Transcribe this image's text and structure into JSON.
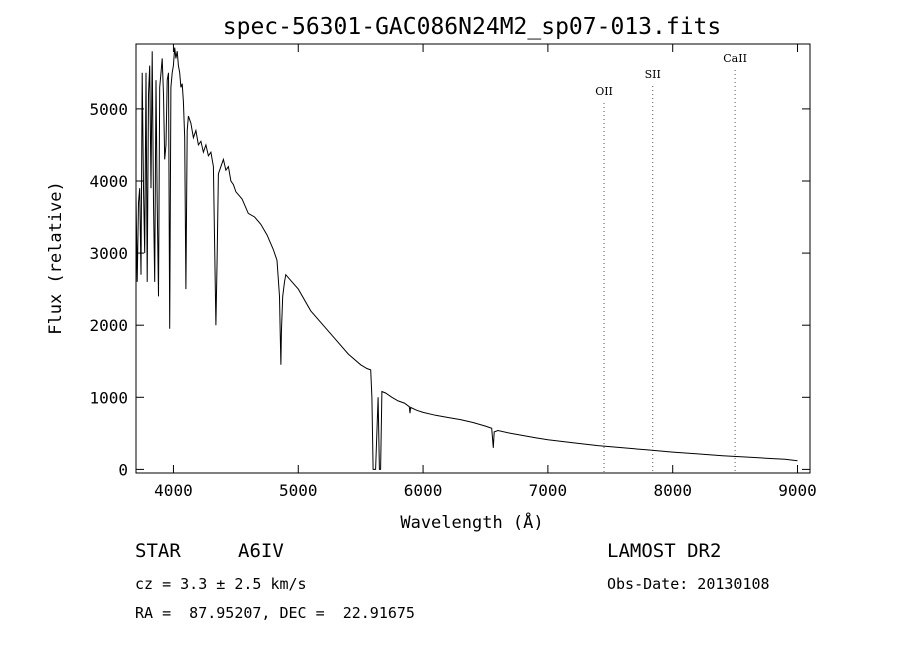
{
  "chart_data": {
    "type": "line",
    "title": "spec-56301-GAC086N24M2_sp07-013.fits",
    "xlabel": "Wavelength (Å)",
    "ylabel": "Flux (relative)",
    "xlim": [
      3700,
      9100
    ],
    "ylim": [
      -50,
      5900
    ],
    "xticks": [
      4000,
      5000,
      6000,
      7000,
      8000,
      9000
    ],
    "yticks": [
      0,
      1000,
      2000,
      3000,
      4000,
      5000
    ],
    "grid": false,
    "series": [
      {
        "x": [
          3700,
          3710,
          3720,
          3730,
          3740,
          3750,
          3760,
          3770,
          3780,
          3790,
          3800,
          3810,
          3820,
          3830,
          3840,
          3850,
          3860,
          3870,
          3880,
          3890,
          3900,
          3910,
          3920,
          3930,
          3940,
          3950,
          3960,
          3970,
          3980,
          3990,
          4000,
          4010,
          4020,
          4030,
          4040,
          4050,
          4060,
          4070,
          4080,
          4090,
          4100,
          4110,
          4120,
          4140,
          4160,
          4180,
          4200,
          4220,
          4240,
          4260,
          4280,
          4300,
          4320,
          4340,
          4350,
          4360,
          4380,
          4400,
          4420,
          4440,
          4460,
          4480,
          4500,
          4550,
          4600,
          4650,
          4700,
          4750,
          4800,
          4830,
          4850,
          4855,
          4861,
          4865,
          4875,
          4890,
          4900,
          4950,
          5000,
          5100,
          5200,
          5300,
          5400,
          5500,
          5550,
          5580,
          5590,
          5600,
          5620,
          5640,
          5650,
          5660,
          5670,
          5700,
          5750,
          5800,
          5850,
          5890,
          5895,
          5900,
          5950,
          6000,
          6100,
          6200,
          6300,
          6400,
          6500,
          6550,
          6563,
          6570,
          6600,
          6700,
          6800,
          6900,
          7000,
          7200,
          7400,
          7600,
          7800,
          8000,
          8200,
          8400,
          8600,
          8800,
          8900,
          9000
        ],
        "y": [
          3800,
          2600,
          3700,
          3900,
          2700,
          5500,
          3900,
          3000,
          5500,
          2600,
          5200,
          5600,
          3900,
          5800,
          3700,
          2600,
          5400,
          3700,
          2400,
          5300,
          5500,
          5700,
          5200,
          4300,
          4500,
          5400,
          5500,
          1950,
          5300,
          5500,
          5600,
          5850,
          5700,
          5800,
          5600,
          5500,
          5300,
          5350,
          5100,
          4600,
          2500,
          4700,
          4900,
          4800,
          4600,
          4700,
          4500,
          4550,
          4400,
          4500,
          4350,
          4400,
          4200,
          2000,
          2900,
          4100,
          4200,
          4300,
          4150,
          4200,
          4000,
          3950,
          3850,
          3750,
          3550,
          3500,
          3400,
          3250,
          3050,
          2900,
          2400,
          1900,
          1450,
          1900,
          2400,
          2600,
          2700,
          2600,
          2500,
          2200,
          2000,
          1800,
          1600,
          1450,
          1400,
          1380,
          1000,
          0,
          0,
          1000,
          0,
          0,
          1080,
          1060,
          1000,
          950,
          920,
          870,
          780,
          860,
          820,
          790,
          750,
          720,
          690,
          650,
          600,
          570,
          300,
          520,
          540,
          500,
          470,
          440,
          410,
          370,
          330,
          300,
          270,
          240,
          215,
          190,
          170,
          150,
          140,
          120
        ]
      }
    ],
    "annotations": [
      {
        "label": "OII",
        "x": 7450
      },
      {
        "label": "SII",
        "x": 7840
      },
      {
        "label": "CaII",
        "x": 8500
      }
    ]
  },
  "info": {
    "object_type": "STAR",
    "subclass": "A6IV",
    "survey": "LAMOST DR2",
    "cz": "cz = 3.3 ± 2.5 km/s",
    "obs_date": "Obs-Date: 20130108",
    "coords": "RA =  87.95207, DEC =  22.91675"
  }
}
